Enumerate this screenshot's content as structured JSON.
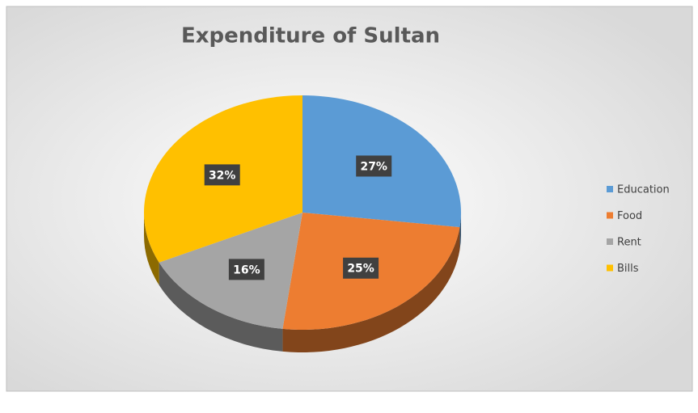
{
  "chart_data": {
    "type": "pie",
    "title": "Expenditure of Sultan",
    "categories": [
      "Education",
      "Food",
      "Rent",
      "Bills"
    ],
    "values": [
      27,
      25,
      16,
      32
    ],
    "value_labels": [
      "27%",
      "25%",
      "16%",
      "32%"
    ],
    "colors": [
      "#5b9bd5",
      "#ed7d31",
      "#a5a5a5",
      "#ffc000"
    ],
    "legend": "right"
  }
}
